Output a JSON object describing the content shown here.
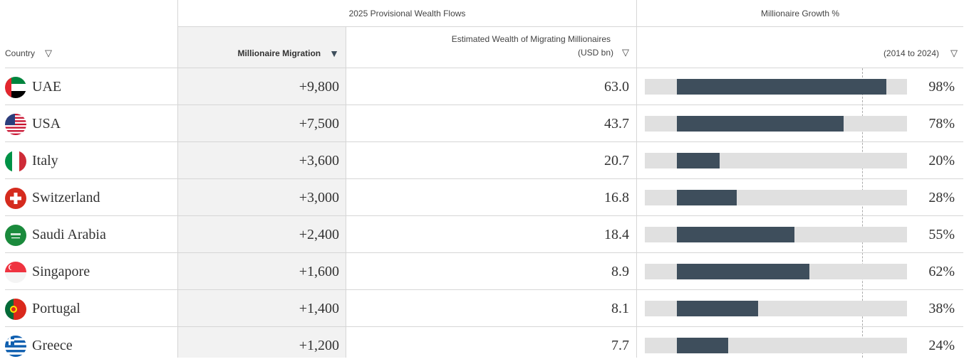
{
  "header": {
    "group_flows": "2025 Provisional Wealth Flows",
    "group_growth": "Millionaire Growth %",
    "col_country": "Country",
    "col_migration": "Millionaire Migration",
    "col_wealth_line1": "Estimated Wealth of Migrating Millionaires",
    "col_wealth_line2": "(USD bn)",
    "col_growth": "(2014 to 2024)",
    "filter_icon": "filter-triangle-icon",
    "sort_icon": "sort-desc-filled-triangle-icon"
  },
  "colors": {
    "bar_fill": "#3e4e5c",
    "bar_track": "#e0e0e0",
    "sorted_column_bg": "#f2f2f2"
  },
  "rows": [
    {
      "country": "UAE",
      "flag": "uae-flag-icon",
      "migration": "+9,800",
      "wealth": "63.0",
      "growth": "98%",
      "growth_value": 98
    },
    {
      "country": "USA",
      "flag": "usa-flag-icon",
      "migration": "+7,500",
      "wealth": "43.7",
      "growth": "78%",
      "growth_value": 78
    },
    {
      "country": "Italy",
      "flag": "italy-flag-icon",
      "migration": "+3,600",
      "wealth": "20.7",
      "growth": "20%",
      "growth_value": 20
    },
    {
      "country": "Switzerland",
      "flag": "switzerland-flag-icon",
      "migration": "+3,000",
      "wealth": "16.8",
      "growth": "28%",
      "growth_value": 28
    },
    {
      "country": "Saudi Arabia",
      "flag": "saudi-arabia-flag-icon",
      "migration": "+2,400",
      "wealth": "18.4",
      "growth": "55%",
      "growth_value": 55
    },
    {
      "country": "Singapore",
      "flag": "singapore-flag-icon",
      "migration": "+1,600",
      "wealth": "8.9",
      "growth": "62%",
      "growth_value": 62
    },
    {
      "country": "Portugal",
      "flag": "portugal-flag-icon",
      "migration": "+1,400",
      "wealth": "8.1",
      "growth": "38%",
      "growth_value": 38
    },
    {
      "country": "Greece",
      "flag": "greece-flag-icon",
      "migration": "+1,200",
      "wealth": "7.7",
      "growth": "24%",
      "growth_value": 24
    }
  ]
}
